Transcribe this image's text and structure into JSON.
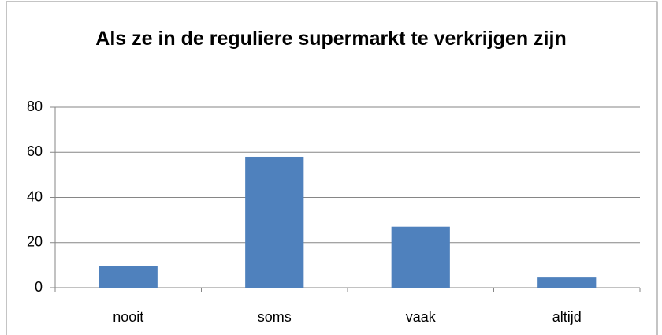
{
  "chart_data": {
    "type": "bar",
    "title": "Als ze in de reguliere supermarkt te verkrijgen zijn",
    "categories": [
      "nooit",
      "soms",
      "vaak",
      "altijd"
    ],
    "values": [
      9.5,
      58,
      27,
      4.5
    ],
    "color": "#4f81bd",
    "ylim": [
      0,
      80
    ],
    "yticks": [
      0,
      20,
      40,
      60,
      80
    ],
    "grid": true
  }
}
